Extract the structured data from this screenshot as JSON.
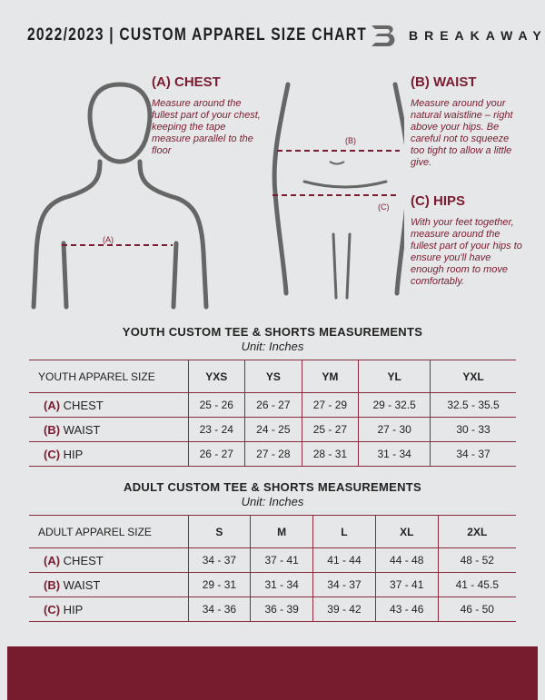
{
  "header": {
    "title": "2022/2023  |  CUSTOM APPAREL SIZE CHART",
    "brand": "BREAKAWAY"
  },
  "chest": {
    "heading": "(A) CHEST",
    "text": "Measure around the fullest part of your chest, keeping the tape measure parallel to the floor",
    "marker": "(A)"
  },
  "waist": {
    "heading": "(B) WAIST",
    "text": "Measure around your natural waistline – right above your hips. Be careful not to squeeze too tight to allow a little give.",
    "marker": "(B)"
  },
  "hips": {
    "heading": "(C) HIPS",
    "text": "With your feet together, measure around the fullest part of your hips to ensure you'll have enough room to move comfortably.",
    "marker": "(C)"
  },
  "colors": {
    "accent": "#7a1c30",
    "background": "#e6e7e8"
  },
  "youth": {
    "title": "YOUTH CUSTOM TEE & SHORTS MEASUREMENTS",
    "unit": "Unit: Inches",
    "header": "YOUTH APPAREL SIZE",
    "sizes": [
      "YXS",
      "YS",
      "YM",
      "YL",
      "YXL"
    ],
    "rows": [
      {
        "code": "(A)",
        "name": "CHEST",
        "values": [
          "25 - 26",
          "26 - 27",
          "27 - 29",
          "29 - 32.5",
          "32.5 - 35.5"
        ]
      },
      {
        "code": "(B)",
        "name": "WAIST",
        "values": [
          "23 - 24",
          "24 - 25",
          "25 - 27",
          "27 - 30",
          "30 - 33"
        ]
      },
      {
        "code": "(C)",
        "name": "HIP",
        "values": [
          "26 - 27",
          "27 - 28",
          "28 - 31",
          "31 - 34",
          "34 - 37"
        ]
      }
    ]
  },
  "adult": {
    "title": "ADULT CUSTOM TEE & SHORTS MEASUREMENTS",
    "unit": "Unit: Inches",
    "header": "ADULT APPAREL SIZE",
    "sizes": [
      "S",
      "M",
      "L",
      "XL",
      "2XL"
    ],
    "rows": [
      {
        "code": "(A)",
        "name": "CHEST",
        "values": [
          "34 - 37",
          "37 - 41",
          "41 - 44",
          "44 - 48",
          "48 - 52"
        ]
      },
      {
        "code": "(B)",
        "name": "WAIST",
        "values": [
          "29 - 31",
          "31 - 34",
          "34 - 37",
          "37 - 41",
          "41 - 45.5"
        ]
      },
      {
        "code": "(C)",
        "name": "HIP",
        "values": [
          "34 - 36",
          "36 - 39",
          "39 - 42",
          "43 - 46",
          "46 - 50"
        ]
      }
    ]
  }
}
